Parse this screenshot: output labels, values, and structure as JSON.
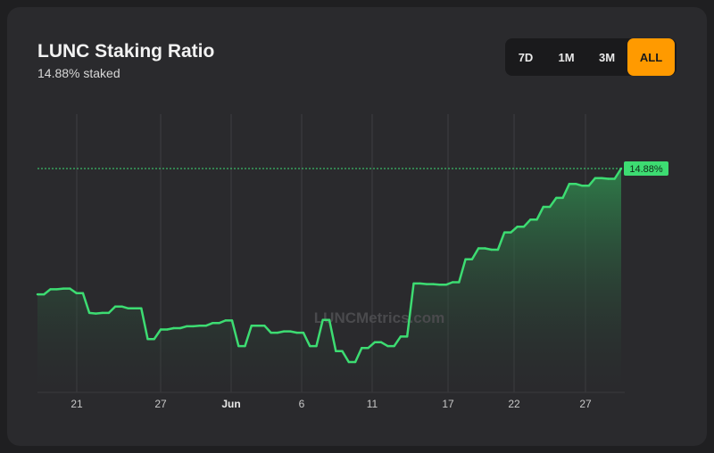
{
  "header": {
    "title": "LUNC Staking Ratio",
    "subtitle": "14.88% staked"
  },
  "range_selector": {
    "options": [
      "7D",
      "1M",
      "3M",
      "ALL"
    ],
    "active": "ALL"
  },
  "watermark": "LUNCMetrics.com",
  "colors": {
    "line": "#3ddc72",
    "accent": "#ff9a00",
    "background": "#2a2a2d"
  },
  "chart_data": {
    "type": "area",
    "title": "LUNC Staking Ratio",
    "xlabel": "",
    "ylabel": "",
    "grid": true,
    "x_ticks": [
      "21",
      "27",
      "Jun",
      "6",
      "11",
      "17",
      "22",
      "27"
    ],
    "y_axis_visible": false,
    "last_value_label": "14.88%",
    "reference_line": 14.88,
    "series": [
      {
        "values": [
          12.91,
          12.91,
          12.99,
          12.99,
          13.0,
          13.0,
          12.93,
          12.93,
          12.62,
          12.61,
          12.62,
          12.62,
          12.72,
          12.72,
          12.69,
          12.69,
          12.69,
          12.21,
          12.21,
          12.36,
          12.36,
          12.38,
          12.38,
          12.41,
          12.41,
          12.42,
          12.42,
          12.46,
          12.46,
          12.5,
          12.5,
          12.1,
          12.1,
          12.42,
          12.42,
          12.42,
          12.31,
          12.31,
          12.33,
          12.33,
          12.31,
          12.31,
          12.1,
          12.1,
          12.51,
          12.51,
          12.02,
          12.02,
          11.85,
          11.85,
          12.07,
          12.07,
          12.16,
          12.16,
          12.1,
          12.1,
          12.25,
          12.25,
          13.08,
          13.08,
          13.07,
          13.07,
          13.06,
          13.06,
          13.1,
          13.1,
          13.46,
          13.46,
          13.63,
          13.63,
          13.61,
          13.61,
          13.88,
          13.88,
          13.97,
          13.97,
          14.08,
          14.08,
          14.28,
          14.28,
          14.42,
          14.42,
          14.64,
          14.64,
          14.61,
          14.61,
          14.73,
          14.73,
          14.72,
          14.72,
          14.88
        ]
      }
    ]
  }
}
